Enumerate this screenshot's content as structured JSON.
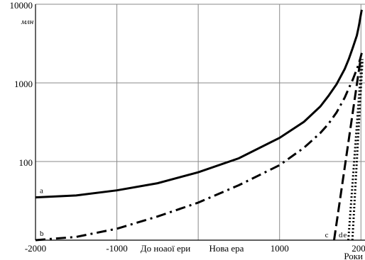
{
  "chart_data": {
    "type": "line",
    "y_scale": "log",
    "x": [
      -2000,
      -1500,
      -1000,
      -500,
      0,
      500,
      1000,
      1300,
      1500,
      1600,
      1700,
      1800,
      1850,
      1900,
      1950,
      1970,
      1980,
      1990,
      2000,
      2010
    ],
    "series": [
      {
        "name": "a",
        "style": "solid",
        "values": [
          35,
          37,
          43,
          53,
          73,
          110,
          200,
          320,
          500,
          680,
          960,
          1500,
          2000,
          2800,
          4000,
          5000,
          5700,
          6500,
          7500,
          8500
        ]
      },
      {
        "name": "b",
        "style": "dash-dot",
        "values": [
          10,
          11,
          14,
          20,
          30,
          50,
          90,
          150,
          230,
          300,
          420,
          650,
          850,
          1100,
          1500,
          1700,
          1850,
          2000,
          2200,
          2400
        ]
      }
    ],
    "trend_lines": [
      {
        "name": "c",
        "style": "dashed",
        "x": [
          1670,
          1995
        ],
        "y": [
          10,
          2000
        ]
      },
      {
        "name": "d",
        "style": "dotted",
        "x": [
          1845,
          2010
        ],
        "y": [
          10,
          2000
        ]
      },
      {
        "name": "e",
        "style": "dotted",
        "x": [
          1895,
          2020
        ],
        "y": [
          10,
          2000
        ]
      }
    ],
    "x_ticks": [
      "-2000",
      "-1000",
      "1000",
      "2000"
    ],
    "x_tick_values": [
      -2000,
      -1000,
      1000,
      2000
    ],
    "era_labels": {
      "before": "До ноаої ери",
      "after": "Нова ера"
    },
    "x_unit": "Роки",
    "y_ticks": [
      "100",
      "1000",
      "10000"
    ],
    "y_tick_values": [
      100,
      1000,
      10000
    ],
    "y_unit": "млн",
    "xlim": [
      -2000,
      2050
    ],
    "ylim": [
      10,
      10000
    ],
    "grid": true,
    "colors": {
      "line": "#000000",
      "grid": "#8a8a8a"
    }
  }
}
